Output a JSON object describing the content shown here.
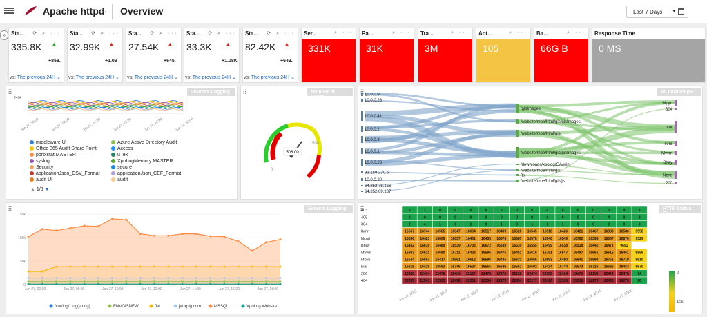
{
  "app_title": "Apache httpd",
  "page_title": "Overview",
  "time_range": "Last 7 Days",
  "kpis": [
    {
      "title": "Sta...",
      "value": "335.8K",
      "change": "+858.",
      "dir": "up",
      "vs_prefix": "vs:",
      "vs_link": "The previous 24H"
    },
    {
      "title": "Sta...",
      "value": "32.99K",
      "change": "+1.09",
      "dir": "down",
      "vs_prefix": "vs:",
      "vs_link": "The previous 24H"
    },
    {
      "title": "Sta...",
      "value": "27.54K",
      "change": "+645.",
      "dir": "down",
      "vs_prefix": "vs:",
      "vs_link": "The previous 24H"
    },
    {
      "title": "Sta...",
      "value": "33.3K",
      "change": "+1.08K",
      "dir": "down",
      "vs_prefix": "vs:",
      "vs_link": "The previous 24H"
    },
    {
      "title": "Sta...",
      "value": "82.42K",
      "change": "+643.",
      "dir": "down",
      "vs_prefix": "vs:",
      "vs_link": "The previous 24H"
    }
  ],
  "stat_cards": [
    {
      "title": "Ser...",
      "value": "331K",
      "color": "#ff0000"
    },
    {
      "title": "Pa...",
      "value": "31K",
      "color": "#ff0000"
    },
    {
      "title": "Tra...",
      "value": "3M",
      "color": "#ff0000"
    },
    {
      "title": "Act...",
      "value": "105",
      "color": "#f4c542"
    },
    {
      "title": "Ba...",
      "value": "66G B",
      "color": "#ff0000"
    },
    {
      "title": "Response Time",
      "value": "0 MS",
      "color": "#a5a5a5"
    }
  ],
  "sources_chart": {
    "title": "Sources Logging ...",
    "ytick": "240k",
    "xticks": [
      "Jun 27, 10:00",
      "Jun 27, 12:00",
      "Jun 27, 14:00",
      "Jun 27, 16:00",
      "Jun 27, 18:00",
      "Jun 27, 20:00"
    ],
    "legend_left": [
      {
        "label": "middleware UI",
        "color": "#2f7ed8"
      },
      {
        "label": "Office 365 Audit Share Point",
        "color": "#f7c400"
      },
      {
        "label": "portxstat MASTER",
        "color": "#ff8c42"
      },
      {
        "label": "syslog",
        "color": "#9b59b6"
      },
      {
        "label": "Security",
        "color": "#f4a460"
      },
      {
        "label": "applicationJson_CSV_Format",
        "color": "#c0392b"
      },
      {
        "label": "audit UI",
        "color": "#e67e22"
      }
    ],
    "legend_right": [
      {
        "label": "Azure Active Directory Audit",
        "color": "#8bc34a"
      },
      {
        "label": "Access",
        "color": "#2196f3"
      },
      {
        "label": "u_ex",
        "color": "#1b8a5a"
      },
      {
        "label": "XpoLogMemory MASTER",
        "color": "#55a630"
      },
      {
        "label": "secure",
        "color": "#1e88e5"
      },
      {
        "label": "applicationJson_CEF_Format",
        "color": "#b39ddb"
      },
      {
        "label": "audit",
        "color": "#f8c98b"
      }
    ],
    "pager": "1/3"
  },
  "users_gauge": {
    "title": "Number of Users",
    "value": "506.00"
  },
  "ip_journey": {
    "title": "IP Journey (IP ...",
    "left_labels": [
      "10.0.0.9",
      "10.0.0.26",
      "10.0.0.41",
      "10.0.0.2",
      "10.0.0.8",
      "10.0.0.1",
      "10.0.0.23",
      "93.159.230.5",
      "10.0.0.20",
      "64.252.75.156",
      "64.252.69.167"
    ],
    "mid_labels": [
      "/gisImages",
      "/website/moe/html/gis/gisImages",
      "/website/moe/html/gis",
      "/website/moe/html/gis/gisImages",
      "/downloads/xpolog/GA/win",
      "/website/moe/html/gis/",
      "/js",
      "/website/moe/html/gis/js"
    ],
    "right_labels": [
      "Mpyn",
      "304",
      "Ivar",
      "Ikmr",
      "Myvm",
      "Bhay",
      "Ncnd",
      "200"
    ]
  },
  "servers_chart": {
    "title": "Servers Logging ...",
    "yticks": [
      "150k",
      "100k",
      "50k",
      "0"
    ],
    "xticks": [
      "Jun 27, 06:00",
      "Jun 27, 08:00",
      "Jun 27, 10:00",
      "Jun 27, 12:00",
      "Jun 27, 14:00",
      "Jun 27, 16:00",
      "Jun 27, 18:00"
    ],
    "legend": [
      {
        "label": "/var/log/...og(string)",
        "color": "#2f7ed8"
      },
      {
        "label": "ENVGISNEW",
        "color": "#8bc34a"
      },
      {
        "label": "Jet",
        "color": "#f7b500"
      },
      {
        "label": "jet.xplg.com",
        "color": "#a3c9f0"
      },
      {
        "label": "MSSQL",
        "color": "#ff8c42"
      },
      {
        "label": "XpoLog Website",
        "color": "#1b9e8a"
      }
    ],
    "series": [
      {
        "name": "MSSQL",
        "color": "#ff8c42",
        "values": [
          102,
          118,
          115,
          120,
          125,
          124,
          140,
          138,
          108,
          104,
          104,
          108,
          108,
          103,
          102,
          92,
          72,
          90,
          96
        ]
      },
      {
        "name": "Jet",
        "color": "#f7b500",
        "values": [
          28,
          28,
          38,
          38,
          38,
          38,
          38,
          38,
          38,
          38,
          38,
          38,
          38,
          38,
          38,
          38,
          38,
          38,
          38
        ]
      },
      {
        "name": "jet.xplg.com",
        "color": "#a3c9f0",
        "values": [
          14,
          14,
          14,
          14,
          14,
          14,
          14,
          14,
          14,
          14,
          14,
          14,
          14,
          14,
          14,
          14,
          14,
          14,
          14
        ]
      },
      {
        "name": "ENVGISNEW",
        "color": "#8bc34a",
        "values": [
          6,
          6,
          6,
          6,
          6,
          6,
          6,
          6,
          6,
          6,
          6,
          6,
          6,
          6,
          6,
          6,
          6,
          6,
          6
        ]
      },
      {
        "name": "XpoLog Website",
        "color": "#1b9e8a",
        "values": [
          1,
          1,
          1,
          1,
          1,
          1,
          1,
          1,
          1,
          1,
          1,
          1,
          1,
          1,
          1,
          1,
          1,
          1,
          1
        ]
      }
    ]
  },
  "heatmap": {
    "title": "HTTP Status Co...",
    "rows": [
      "403",
      "405",
      "304",
      "Ikmr",
      "Ncnd",
      "Bhay",
      "Myvm",
      "Mpyn",
      "Ivar",
      "206",
      "404"
    ],
    "cells": [
      [
        "0",
        "1",
        "0",
        "0",
        "0",
        "0",
        "0",
        "0",
        "0",
        "0",
        "0",
        "0",
        "0",
        "0",
        "0",
        "0"
      ],
      [
        "0",
        "0",
        "0",
        "0",
        "0",
        "0",
        "0",
        "0",
        "0",
        "0",
        "0",
        "0",
        "0",
        "4",
        "0",
        "8"
      ],
      [
        "2",
        "4",
        "1",
        "0",
        "1",
        "0",
        "1",
        "0",
        "1",
        "1",
        "1",
        "0",
        "0",
        "0",
        "0",
        "0"
      ],
      [
        "16567",
        "16744",
        "16565",
        "16347",
        "16664",
        "16517",
        "16499",
        "16520",
        "16545",
        "16518",
        "16426",
        "16421",
        "16467",
        "16380",
        "16586",
        "9558"
      ],
      [
        "16596",
        "16423",
        "16609",
        "16637",
        "16401",
        "16435",
        "16576",
        "16687",
        "16578",
        "16546",
        "16549",
        "16702",
        "16398",
        "16557",
        "16670",
        "9529"
      ],
      [
        "16432",
        "16616",
        "16489",
        "16539",
        "16733",
        "16672",
        "16689",
        "16539",
        "16555",
        "16499",
        "16518",
        "16518",
        "16442",
        "16471",
        "9691",
        ""
      ],
      [
        "16603",
        "16621",
        "16690",
        "16711",
        "16423",
        "16595",
        "16475",
        "16452",
        "16616",
        "16791",
        "16547",
        "16497",
        "16661",
        "16615",
        "16461",
        "9859"
      ],
      [
        "16544",
        "16553",
        "16417",
        "16591",
        "16612",
        "16596",
        "16435",
        "16631",
        "16666",
        "16693",
        "16480",
        "16641",
        "16590",
        "16751",
        "16719",
        "9610"
      ],
      [
        "16618",
        "16425",
        "16593",
        "16746",
        "16527",
        "16555",
        "16686",
        "16552",
        "16502",
        "16424",
        "16744",
        "16573",
        "16726",
        "16626",
        "16453",
        "9670"
      ],
      [
        "22158",
        "22474",
        "22478",
        "22434",
        "22157",
        "22478",
        "22478",
        "22158",
        "22474",
        "22158",
        "22474",
        "22475",
        "22158",
        "22474",
        "22478",
        "14"
      ],
      [
        "22305",
        "22541",
        "22305",
        "22498",
        "22301",
        "22536",
        "22179",
        "22494",
        "22177",
        "22490",
        "22196",
        "22519",
        "22179",
        "22483",
        "18275",
        "90"
      ]
    ],
    "xticks": [
      "Jun 20, 2023",
      "Jun 21, 2023",
      "Jun 22, 2023",
      "Jun 23, 2023",
      "Jun 24, 2023",
      "Jun 25, 2023",
      "Jun 26, 2023",
      "Jun 27, 2023"
    ],
    "scale_labels": [
      "0",
      "10k"
    ]
  },
  "colors": {
    "red": "#ff0000",
    "yellow": "#f4c542",
    "gray": "#a5a5a5",
    "up": "#2e9e2e",
    "down": "#e02020"
  }
}
